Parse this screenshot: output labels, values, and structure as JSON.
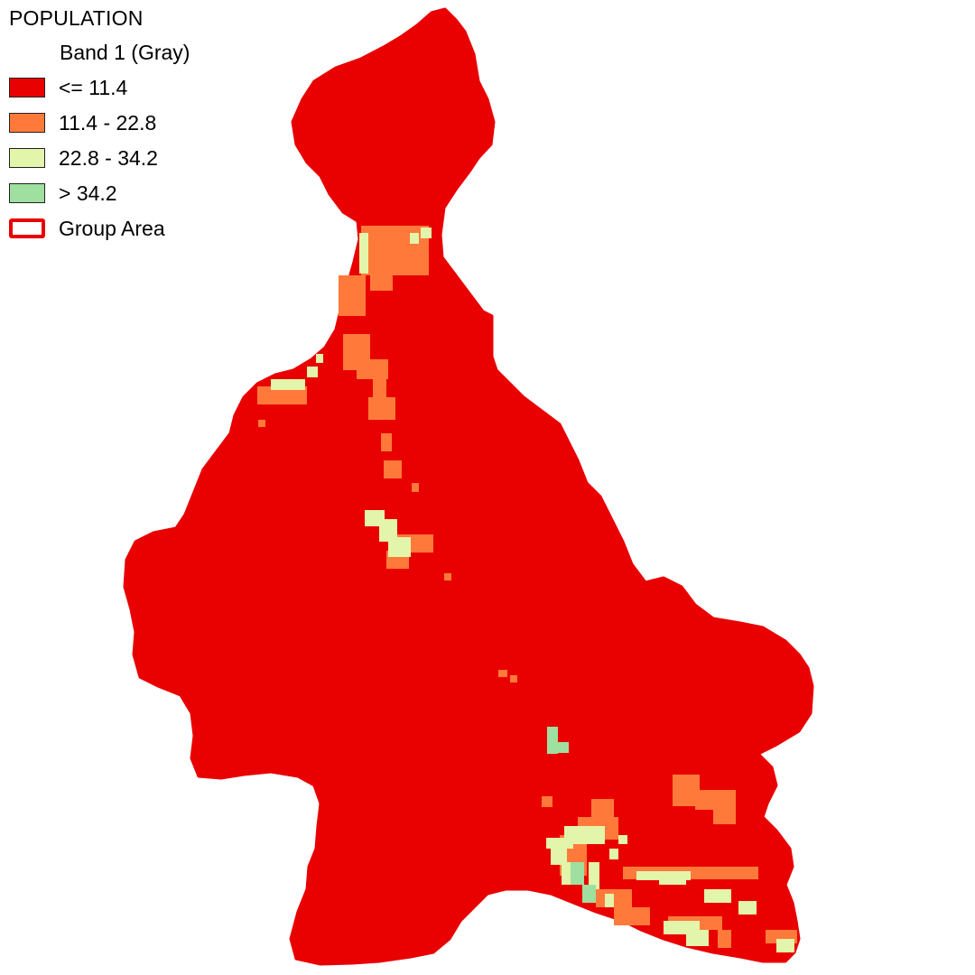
{
  "legend": {
    "title": "POPULATION",
    "subtitle": "Band 1 (Gray)",
    "classes": [
      {
        "label": "<= 11.4",
        "color": "#e90000"
      },
      {
        "label": "11.4 - 22.8",
        "color": "#ff7a3a"
      },
      {
        "label": "22.8 - 34.2",
        "color": "#e2f5aa"
      },
      {
        "label": "> 34.2",
        "color": "#9fdf9f"
      }
    ],
    "boundary": {
      "label": "Group Area",
      "color": "#e90000"
    }
  },
  "map": {
    "base_color": "#e90000",
    "patch_colors": {
      "orange": "#ff7a3a",
      "yellow": "#e2f5aa",
      "green": "#9fdf9f"
    }
  }
}
